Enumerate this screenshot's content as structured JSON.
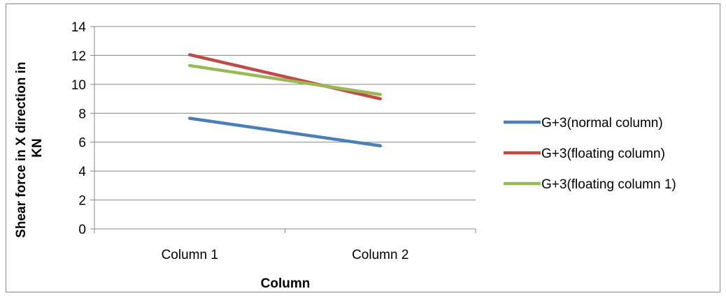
{
  "chart_data": {
    "type": "line",
    "title": "",
    "xlabel": "Column",
    "ylabel_lines": [
      "Shear force in X direction in",
      "KN"
    ],
    "categories": [
      "Column 1",
      "Column 2"
    ],
    "ylim": [
      0,
      14
    ],
    "yticks": [
      0,
      2,
      4,
      6,
      8,
      10,
      12,
      14
    ],
    "grid": true,
    "legend_position": "right",
    "series": [
      {
        "name": "G+3(normal column)",
        "values": [
          7.65,
          5.75
        ],
        "color": "#4a7ebb"
      },
      {
        "name": "G+3(floating column)",
        "values": [
          12.05,
          9.0
        ],
        "color": "#be4b48"
      },
      {
        "name": "G+3(floating column 1)",
        "values": [
          11.3,
          9.3
        ],
        "color": "#98b954"
      }
    ]
  }
}
